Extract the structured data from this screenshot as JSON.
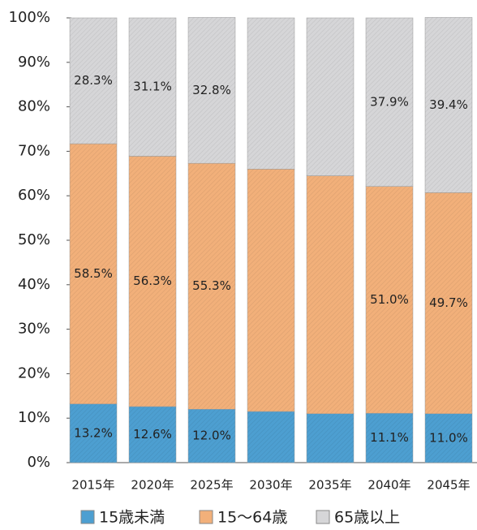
{
  "chart_data": {
    "type": "stacked_bar",
    "categories": [
      "2015年",
      "2020年",
      "2025年",
      "2030年",
      "2035年",
      "2040年",
      "2045年"
    ],
    "series": [
      {
        "name": "15歳未満",
        "color": "#4d9fd1",
        "values": [
          13.2,
          12.6,
          12.0,
          11.5,
          11.0,
          11.1,
          11.0
        ],
        "value_labels": [
          "13.2%",
          "12.6%",
          "12.0%",
          null,
          null,
          "11.1%",
          "11.0%"
        ]
      },
      {
        "name": "15～64歳",
        "color": "#f2b07a",
        "values": [
          58.5,
          56.3,
          55.3,
          54.5,
          53.5,
          51.0,
          49.7
        ],
        "value_labels": [
          "58.5%",
          "56.3%",
          "55.3%",
          null,
          null,
          "51.0%",
          "49.7%"
        ]
      },
      {
        "name": "65歳以上",
        "color": "#d6d6d8",
        "values": [
          28.3,
          31.1,
          32.8,
          34.0,
          35.5,
          37.9,
          39.4
        ],
        "value_labels": [
          "28.3%",
          "31.1%",
          "32.8%",
          null,
          null,
          "37.9%",
          "39.4%"
        ]
      }
    ],
    "ylim": [
      0,
      100
    ],
    "yticks": [
      {
        "value": 0,
        "label": "0%"
      },
      {
        "value": 10,
        "label": "10%"
      },
      {
        "value": 20,
        "label": "20%"
      },
      {
        "value": 30,
        "label": "30%"
      },
      {
        "value": 40,
        "label": "40%"
      },
      {
        "value": 50,
        "label": "50%"
      },
      {
        "value": 60,
        "label": "60%"
      },
      {
        "value": 70,
        "label": "70%"
      },
      {
        "value": 80,
        "label": "80%"
      },
      {
        "value": 90,
        "label": "90%"
      },
      {
        "value": 100,
        "label": "100%"
      }
    ],
    "legend": "bottom"
  }
}
